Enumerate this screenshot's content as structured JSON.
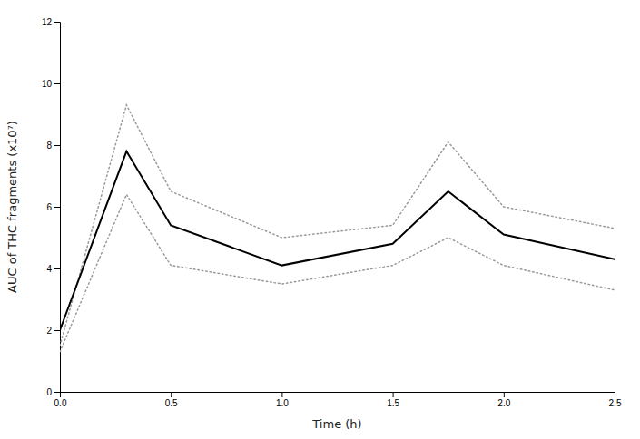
{
  "chart_data": {
    "type": "line",
    "x": [
      0.0,
      0.3,
      0.5,
      1.0,
      1.5,
      1.75,
      2.0,
      2.5
    ],
    "series": [
      {
        "color": "#999999",
        "line_style": "dotted",
        "values": [
          1.5,
          9.3,
          6.5,
          5.0,
          5.4,
          8.1,
          6.0,
          5.3
        ]
      },
      {
        "color": "#999999",
        "line_style": "dotted",
        "values": [
          1.3,
          6.4,
          4.1,
          3.5,
          4.1,
          5.0,
          4.1,
          3.3
        ]
      },
      {
        "color": "#000000",
        "line_style": "solid",
        "values": [
          2.0,
          7.8,
          5.4,
          4.1,
          4.8,
          6.5,
          5.1,
          4.3
        ]
      }
    ],
    "xlabel": "Time (h)",
    "ylabel": "AUC of THC fragments (x10⁷)",
    "xlim": [
      0.0,
      2.5
    ],
    "ylim": [
      0,
      12
    ],
    "xticks": [
      {
        "value": 0.0,
        "label": "0.0"
      },
      0.5,
      {
        "value": 1.0,
        "label": "1.0"
      },
      1.5,
      {
        "value": 2.0,
        "label": "2.0"
      },
      2.5
    ],
    "yticks": [
      0,
      2,
      4,
      6,
      8,
      10,
      12
    ],
    "grid": false
  }
}
